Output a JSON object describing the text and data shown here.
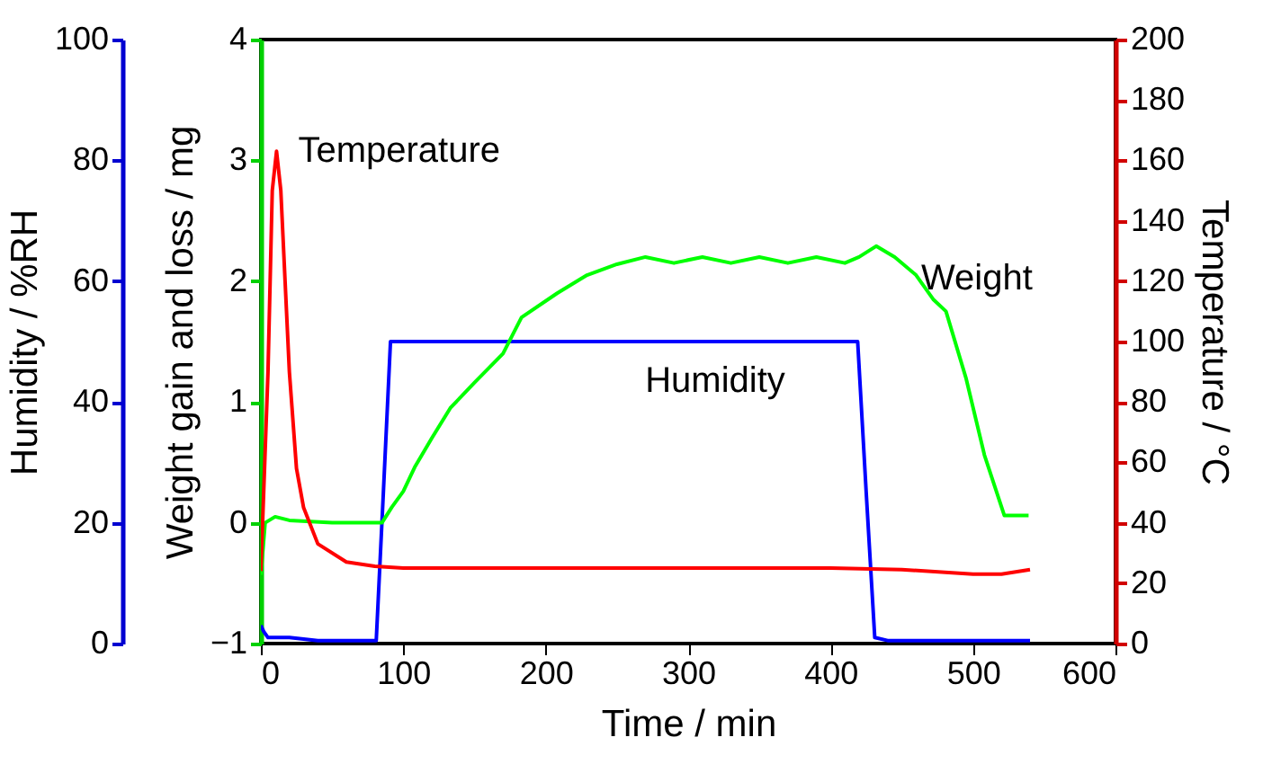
{
  "chart_data": {
    "type": "line",
    "xlabel": "Time / min",
    "ylabel": "Weight gain and loss / mg",
    "y2label": "Temperature / °C",
    "y3label": "Humidity / %RH",
    "xlim": [
      0,
      600
    ],
    "xticks": [
      0,
      100,
      200,
      300,
      400,
      500,
      600
    ],
    "ylim": [
      -1,
      4
    ],
    "yticks": [
      -1,
      0,
      1,
      2,
      3,
      4
    ],
    "y2lim": [
      0,
      200
    ],
    "y2ticks": [
      0,
      20,
      40,
      60,
      80,
      100,
      120,
      140,
      160,
      180,
      200
    ],
    "y3lim": [
      0,
      100
    ],
    "y3ticks": [
      0,
      20,
      40,
      60,
      80,
      100
    ],
    "grid": false,
    "legend": false,
    "marker": "none",
    "line_style": "solid",
    "series": [
      {
        "name": "Humidity",
        "color": "#0000ff",
        "axis": "y3",
        "x": [
          0,
          2,
          5,
          10,
          20,
          40,
          60,
          81,
          86,
          91,
          100,
          150,
          200,
          250,
          300,
          350,
          400,
          419,
          425,
          431,
          440,
          480,
          520,
          540
        ],
        "values": [
          3,
          2,
          1,
          1,
          1,
          0.5,
          0.5,
          0.5,
          25,
          50,
          50,
          50,
          50,
          50,
          50,
          50,
          50,
          50,
          25,
          1,
          0.5,
          0.5,
          0.5,
          0.5
        ]
      },
      {
        "name": "Weight",
        "color": "#00ff00",
        "axis": "y",
        "x": [
          0,
          3,
          10,
          20,
          50,
          85,
          92,
          100,
          108,
          120,
          133,
          150,
          170,
          183,
          208,
          229,
          250,
          270,
          290,
          310,
          330,
          350,
          370,
          390,
          410,
          420,
          432,
          445,
          460,
          472,
          481,
          495,
          508,
          522,
          539
        ],
        "values": [
          -0.43,
          0,
          0.05,
          0.02,
          0,
          0,
          0.13,
          0.26,
          0.46,
          0.7,
          0.95,
          1.16,
          1.4,
          1.7,
          1.9,
          2.05,
          2.14,
          2.2,
          2.15,
          2.2,
          2.15,
          2.2,
          2.15,
          2.2,
          2.15,
          2.2,
          2.29,
          2.2,
          2.05,
          1.85,
          1.75,
          1.2,
          0.56,
          0.06,
          0.06
        ]
      },
      {
        "name": "Temperature",
        "color": "#ff0000",
        "axis": "y2",
        "x": [
          0,
          5,
          8,
          11,
          14,
          17,
          20,
          25,
          30,
          40,
          60,
          80,
          100,
          200,
          300,
          400,
          450,
          500,
          520,
          540
        ],
        "values": [
          24,
          90,
          150,
          163,
          150,
          120,
          90,
          58,
          45,
          33,
          27,
          25.6,
          25,
          25,
          25,
          25,
          24.5,
          23,
          23,
          24.5
        ]
      }
    ]
  }
}
